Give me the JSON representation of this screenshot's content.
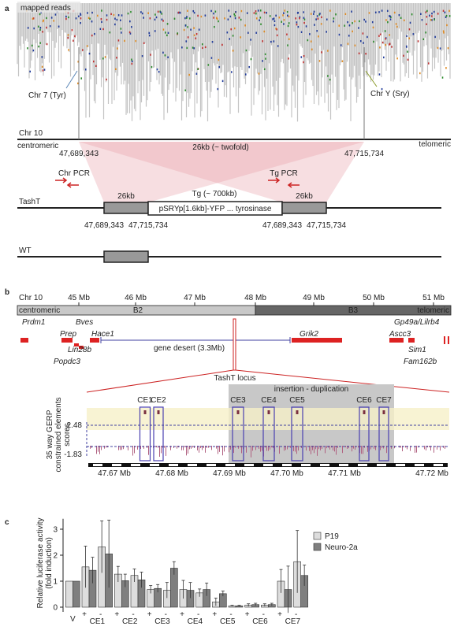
{
  "panel_a": {
    "label": "a",
    "reads_label": "mapped reads",
    "chr7": "Chr 7 (Tyr)",
    "chrY": "Chr Y (Sry)",
    "chr10": "Chr 10",
    "centromeric": "centromeric",
    "telomeric": "telomeric",
    "positions": [
      "47,689,343",
      "47,715,734"
    ],
    "duplication": "26kb (~ twofold)",
    "chr_pcr": "Chr PCR",
    "tg_pcr": "Tg PCR",
    "tasht": "TashT",
    "box_left": "26kb",
    "tg": "Tg (~ 700kb)",
    "construct": "pSRYp[1.6kb]-YFP   ...   tyrosinase",
    "box_right": "26kb",
    "tasht_positions": [
      "47,689,343",
      "47,715,734",
      "47,689,343",
      "47,715,734"
    ],
    "wt": "WT"
  },
  "panel_b": {
    "label": "b",
    "chr10": "Chr 10",
    "mb_ticks": [
      "45 Mb",
      "46 Mb",
      "47 Mb",
      "48 Mb",
      "49 Mb",
      "50 Mb",
      "51 Mb"
    ],
    "centromeric": "centromeric",
    "band_b2": "B2",
    "band_b3": "B3",
    "telomeric": "telomeric",
    "genes": [
      "Prdm1",
      "Bves",
      "Prep",
      "Hace1",
      "Lin28b",
      "Popdc3",
      "Grik2",
      "Gp49a/Lilrb4",
      "Ascc3",
      "Sim1",
      "Fam162b"
    ],
    "gene_desert": "gene desert (3.3Mb)",
    "tasht_locus": "TashT locus",
    "insertion": "insertion - duplication",
    "elements": [
      "CE1",
      "CE2",
      "CE3",
      "CE4",
      "CE5",
      "CE6",
      "CE7"
    ],
    "gerp_high": "2.48",
    "gerp_low": "-1.83",
    "gerp_label": [
      "35 way GERP",
      "constrained elements",
      "scores"
    ],
    "zoom_ticks": [
      "47.67 Mb",
      "47.68 Mb",
      "47.69 Mb",
      "47.70 Mb",
      "47.71 Mb",
      "47.72 Mb"
    ]
  },
  "chart_data": {
    "type": "bar",
    "panel_label": "c",
    "ylabel": [
      "Relative luciferase activity",
      "(fold induction)"
    ],
    "categories": [
      "V",
      "+",
      "-",
      "+",
      "-",
      "+",
      "-",
      "+",
      "-",
      "+",
      "-",
      "+",
      "-",
      "+",
      "-"
    ],
    "groups": [
      "CE1",
      "CE2",
      "CE3",
      "CE4",
      "CE5",
      "CE6",
      "CE7"
    ],
    "series": [
      {
        "name": "P19",
        "color": "#dddddd",
        "values": [
          1,
          1.55,
          2.32,
          1.27,
          1.22,
          0.68,
          0.65,
          0.68,
          0.55,
          0.2,
          0.05,
          0.08,
          0.08,
          1.0,
          1.75
        ],
        "errors": [
          0,
          0.8,
          1.0,
          0.3,
          0.25,
          0.15,
          0.3,
          0.35,
          0.15,
          0.15,
          0.02,
          0.05,
          0.05,
          0.45,
          1.2
        ]
      },
      {
        "name": "Neuro-2a",
        "color": "#7f7f7f",
        "values": [
          1,
          1.42,
          2.05,
          1.02,
          1.05,
          0.72,
          1.5,
          0.65,
          0.68,
          0.52,
          0.05,
          0.1,
          0.1,
          0.68,
          1.22
        ],
        "errors": [
          0,
          0.5,
          1.3,
          0.25,
          0.3,
          0.15,
          0.25,
          0.3,
          0.25,
          0.1,
          0.02,
          0.05,
          0.05,
          0.9,
          0.4
        ]
      }
    ],
    "ylim": [
      0,
      3.4
    ],
    "yticks": [
      0,
      1,
      2,
      3
    ]
  }
}
